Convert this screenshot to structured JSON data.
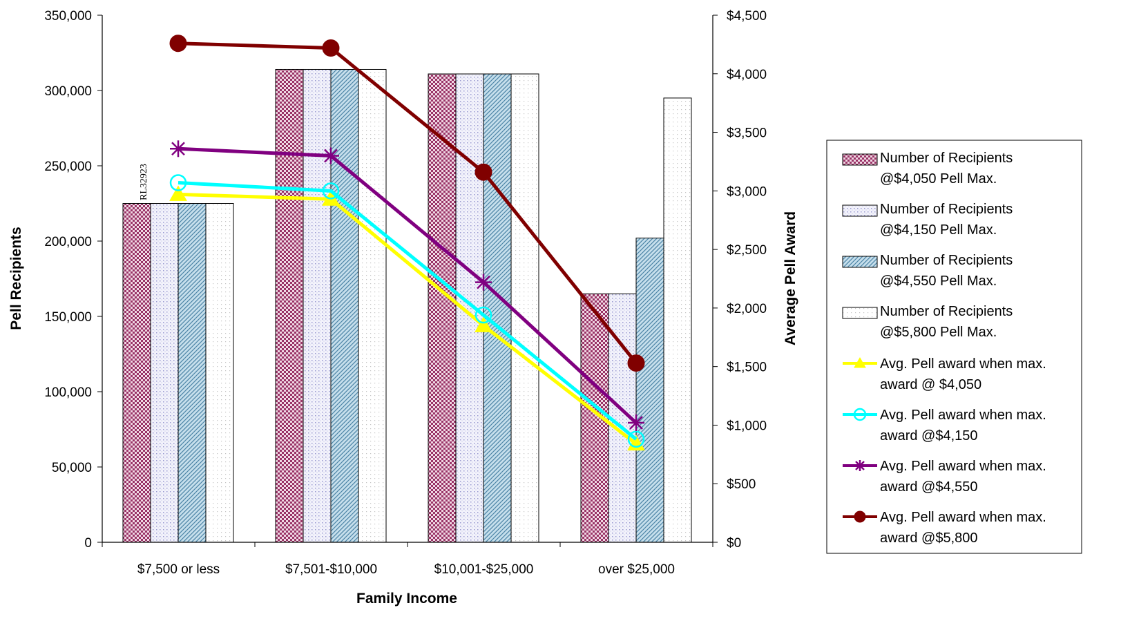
{
  "chart_data": {
    "type": "bar",
    "title": "",
    "xlabel": "Family Income",
    "ylabel": "Pell Recipients",
    "y2label": "Average Pell Award",
    "watermark": "RL32923",
    "categories": [
      "$7,500 or less",
      "$7,501-$10,000",
      "$10,001-$25,000",
      "over $25,000"
    ],
    "ylim": [
      0,
      350000
    ],
    "yticks": [
      "0",
      "50,000",
      "100,000",
      "150,000",
      "200,000",
      "250,000",
      "300,000",
      "350,000"
    ],
    "y2lim": [
      0,
      4500
    ],
    "y2ticks": [
      "$0",
      "$500",
      "$1,000",
      "$1,500",
      "$2,000",
      "$2,500",
      "$3,000",
      "$3,500",
      "$4,000",
      "$4,500"
    ],
    "legend_position": "right",
    "grid": false,
    "bar_series": [
      {
        "name_line1": "Number of Recipients",
        "name_line2": "@$4,050 Pell  Max.",
        "pattern": "checker",
        "color": "#993366",
        "values": [
          225000,
          314000,
          311000,
          165000
        ]
      },
      {
        "name_line1": "Number of Recipients",
        "name_line2": "@$4,150 Pell  Max.",
        "pattern": "dots",
        "color": "#9999cc",
        "values": [
          225000,
          314000,
          311000,
          165000
        ]
      },
      {
        "name_line1": "Number of Recipients",
        "name_line2": "@$4,550 Pell Max.",
        "pattern": "diagonal",
        "color": "#6699bb",
        "values": [
          225000,
          314000,
          311000,
          202000
        ]
      },
      {
        "name_line1": "Number of Recipients",
        "name_line2": "@$5,800 Pell Max.",
        "pattern": "light-dots",
        "color": "#bbbbbb",
        "values": [
          225000,
          314000,
          311000,
          295000
        ]
      }
    ],
    "line_series": [
      {
        "name_line1": "Avg. Pell award when max.",
        "name_line2": "award @ $4,050",
        "color": "#ffff00",
        "marker": "triangle",
        "axis": "right",
        "values": [
          2970,
          2930,
          1850,
          840
        ]
      },
      {
        "name_line1": "Avg. Pell award when max.",
        "name_line2": "award @$4,150",
        "color": "#00ffff",
        "marker": "circle-open",
        "axis": "right",
        "values": [
          3070,
          3000,
          1940,
          880
        ]
      },
      {
        "name_line1": "Avg. Pell award  when max.",
        "name_line2": "award @$4,550",
        "color": "#800080",
        "marker": "star",
        "axis": "right",
        "values": [
          3360,
          3300,
          2220,
          1020
        ]
      },
      {
        "name_line1": "Avg. Pell award  when max.",
        "name_line2": "award @$5,800",
        "color": "#800000",
        "marker": "circle-filled",
        "axis": "right",
        "values": [
          4260,
          4220,
          3160,
          1530
        ]
      }
    ]
  }
}
